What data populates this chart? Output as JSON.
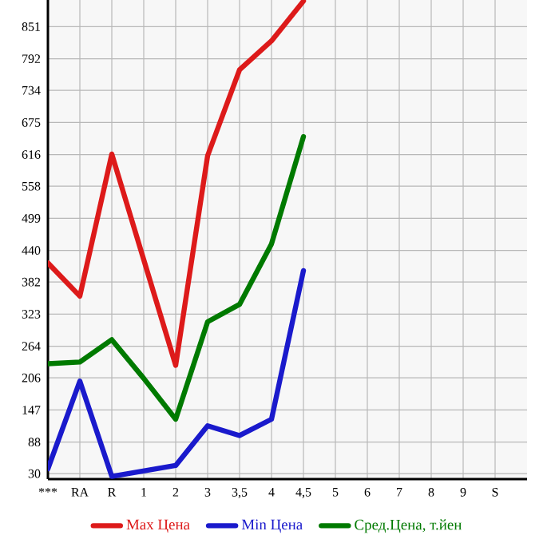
{
  "chart_data": {
    "type": "line",
    "categories": [
      "***",
      "RA",
      "R",
      "1",
      "2",
      "3",
      "3,5",
      "4",
      "4,5",
      "5",
      "6",
      "7",
      "8",
      "9",
      "S"
    ],
    "series": [
      {
        "name": "Max Цена",
        "color": "#dd1a1a",
        "values": [
          417,
          356,
          617,
          423,
          229,
          614,
          772,
          825,
          898,
          null,
          null,
          null,
          null,
          null,
          null
        ]
      },
      {
        "name": "Min Цена",
        "color": "#1a1acc",
        "values": [
          39,
          200,
          25,
          35,
          45,
          118,
          100,
          130,
          403,
          null,
          null,
          null,
          null,
          null,
          null
        ]
      },
      {
        "name": "Сред.Цена, т.йен",
        "color": "#007a00",
        "values": [
          232,
          235,
          276,
          205,
          130,
          309,
          341,
          452,
          649,
          null,
          null,
          null,
          null,
          null,
          null
        ]
      }
    ],
    "ylim": [
      20,
      900
    ],
    "yticks": [
      30,
      88,
      147,
      206,
      264,
      323,
      382,
      440,
      499,
      558,
      616,
      675,
      734,
      792,
      851
    ],
    "grid": true,
    "legend": "bottom",
    "marker": "none",
    "line_style": "solid"
  }
}
